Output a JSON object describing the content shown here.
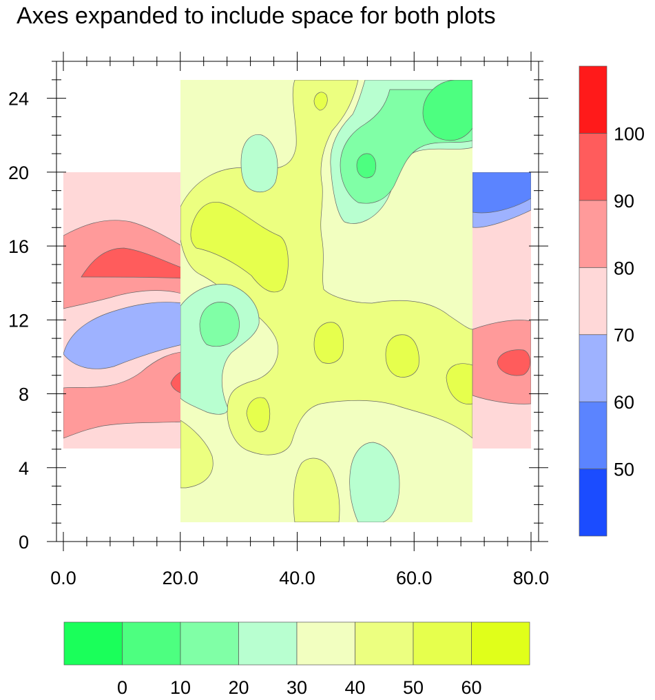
{
  "title": "Axes expanded to include space for both plots",
  "chart_data": {
    "type": "heatmap",
    "title": "Axes expanded to include space for both plots",
    "xlim": [
      -1,
      83
    ],
    "ylim": [
      0,
      26
    ],
    "x_ticks": [
      0,
      20,
      40,
      60,
      80
    ],
    "x_tick_labels": [
      "0.0",
      "20.0",
      "40.0",
      "60.0",
      "80.0"
    ],
    "y_ticks": [
      0,
      4,
      8,
      12,
      16,
      20,
      24
    ],
    "y_tick_labels": [
      "0",
      "4",
      "8",
      "12",
      "16",
      "20",
      "24"
    ],
    "plot_background": {
      "x_range": [
        0,
        80
      ],
      "y_range": [
        5,
        20
      ],
      "contour_levels": [
        50,
        60,
        70,
        80,
        90,
        100
      ],
      "colorbar": {
        "orientation": "vertical",
        "tick_labels": [
          "50",
          "60",
          "70",
          "80",
          "90",
          "100"
        ],
        "colors": [
          "#1b4cff",
          "#5b84ff",
          "#9eb2ff",
          "#ffd8d8",
          "#ff9a9a",
          "#ff5c5c",
          "#ff1a1a"
        ]
      }
    },
    "plot_foreground": {
      "x_range": [
        20,
        70
      ],
      "y_range": [
        1,
        25
      ],
      "contour_levels": [
        0,
        10,
        20,
        30,
        40,
        50,
        60
      ],
      "colorbar": {
        "orientation": "horizontal",
        "tick_labels": [
          "0",
          "10",
          "20",
          "30",
          "40",
          "50",
          "60"
        ],
        "colors": [
          "#1aff5a",
          "#4dff80",
          "#80ffa6",
          "#b8ffd0",
          "#f2ffc0",
          "#ecff80",
          "#e6ff4d",
          "#e0ff1a"
        ]
      }
    },
    "grid": false
  }
}
